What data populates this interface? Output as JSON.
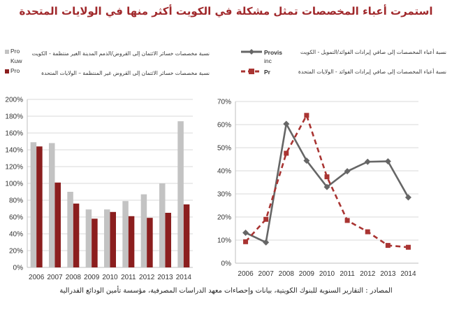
{
  "title": "استمرت أعباء المخصصات تمثل مشكلة في الكويت أكثر منها في الولايات المتحدة",
  "left_legend": {
    "kuwait_stub_1": "Pro",
    "kuwait_stub_2": "Kuw",
    "kuwait_label": "نسبة مخصصات خسائر الائتمان إلى القروض/الذمم المدينة الغير منتظمة  -  الكويت",
    "us_stub": "Pro",
    "us_label": "نسبة مخصصات خسائر الائتمان إلى القروض غير المنتظمة – الولايات المتحدة"
  },
  "right_legend": {
    "kuwait_stub_1": "Provis",
    "kuwait_stub_2": "inc",
    "kuwait_label": "نسبة أعباء المخصصات إلى صافي إيرادات الفوائد/التمويل  -  الكويت",
    "us_stub": "Pr",
    "us_label": "نسبة أعباء المخصصات إلى صافي إيرادات الفوائد  -  الولايات المتحدة"
  },
  "source": "المصادر : التقارير السنوية للبنوك الكويتية، بيانات وإحصاءات معهد الدراسات المصرفية، مؤسسة تأمين الودائع الفدرالية",
  "colors": {
    "kuwait_bar": "#c3c3c3",
    "us_bar": "#8b1e1e",
    "kuwait_line": "#666666",
    "us_line": "#a93432",
    "title": "#a0282b"
  },
  "chart_data": [
    {
      "type": "bar",
      "categories": [
        "2006",
        "2007",
        "2008",
        "2009",
        "2010",
        "2011",
        "2012",
        "2013",
        "2014"
      ],
      "series": [
        {
          "name": "نسبة مخصصات خسائر الائتمان إلى القروض/الذمم المدينة الغير منتظمة  -  الكويت",
          "values": [
            149,
            148,
            90,
            69,
            69,
            79,
            87,
            100,
            174
          ]
        },
        {
          "name": "نسبة مخصصات خسائر الائتمان إلى القروض غير المنتظمة – الولايات المتحدة",
          "values": [
            144,
            101,
            76,
            58,
            66,
            61,
            59,
            65,
            75
          ]
        }
      ],
      "ylim": [
        0,
        200
      ],
      "yticks": [
        "0%",
        "20%",
        "40%",
        "60%",
        "80%",
        "100%",
        "120%",
        "140%",
        "160%",
        "180%",
        "200%"
      ],
      "grid": true
    },
    {
      "type": "line",
      "x": [
        "2006",
        "2007",
        "2008",
        "2009",
        "2010",
        "2011",
        "2012",
        "2013",
        "2014"
      ],
      "series": [
        {
          "name": "نسبة أعباء المخصصات إلى صافي إيرادات الفوائد/التمويل  -  الكويت",
          "values": [
            13.2,
            9,
            60.3,
            44.4,
            33,
            39.8,
            43.9,
            44.1,
            28.5
          ]
        },
        {
          "name": "نسبة أعباء المخصصات إلى صافي إيرادات الفوائد  -  الولايات المتحدة",
          "values": [
            9.3,
            19,
            47.6,
            64,
            37.4,
            18.5,
            13.6,
            7.7,
            6.9
          ]
        }
      ],
      "ylim": [
        0,
        70
      ],
      "yticks": [
        "0%",
        "10%",
        "20%",
        "30%",
        "40%",
        "50%",
        "60%",
        "70%"
      ],
      "grid": true
    }
  ]
}
